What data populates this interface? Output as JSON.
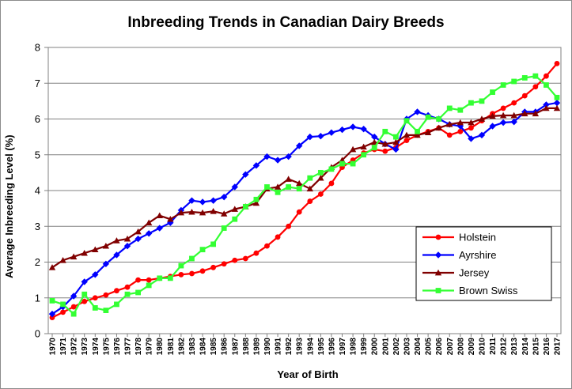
{
  "chart_data": {
    "type": "line",
    "title": "Inbreeding Trends in Canadian Dairy Breeds",
    "xlabel": "Year of Birth",
    "ylabel": "Average Inbreeding Level (%)",
    "ylim": [
      0,
      8
    ],
    "yticks": [
      "0",
      "1",
      "2",
      "3",
      "4",
      "5",
      "6",
      "7",
      "8"
    ],
    "grid": true,
    "legend_position": "bottom-right",
    "categories": [
      "1970",
      "1971",
      "1972",
      "1973",
      "1974",
      "1975",
      "1976",
      "1977",
      "1978",
      "1979",
      "1980",
      "1981",
      "1982",
      "1983",
      "1984",
      "1985",
      "1986",
      "1987",
      "1988",
      "1989",
      "1990",
      "1991",
      "1992",
      "1993",
      "1994",
      "1995",
      "1996",
      "1997",
      "1998",
      "1999",
      "2000",
      "2001",
      "2002",
      "2003",
      "2004",
      "2005",
      "2006",
      "2007",
      "2008",
      "2009",
      "2010",
      "2011",
      "2012",
      "2013",
      "2014",
      "2015",
      "2016",
      "2017"
    ],
    "series": [
      {
        "name": "Holstein",
        "color": "#ff0000",
        "marker": "circle",
        "values": [
          0.45,
          0.6,
          0.75,
          0.9,
          1.0,
          1.08,
          1.2,
          1.3,
          1.5,
          1.5,
          1.55,
          1.6,
          1.65,
          1.68,
          1.75,
          1.85,
          1.95,
          2.05,
          2.1,
          2.25,
          2.45,
          2.7,
          3.0,
          3.4,
          3.7,
          3.9,
          4.2,
          4.65,
          4.85,
          5.05,
          5.15,
          5.1,
          5.2,
          5.4,
          5.55,
          5.65,
          5.75,
          5.55,
          5.65,
          5.75,
          5.95,
          6.15,
          6.3,
          6.45,
          6.65,
          6.9,
          7.2,
          7.55
        ]
      },
      {
        "name": "Ayrshire",
        "color": "#0000ff",
        "marker": "diamond",
        "values": [
          0.55,
          0.75,
          1.05,
          1.45,
          1.65,
          1.95,
          2.2,
          2.45,
          2.65,
          2.8,
          2.95,
          3.1,
          3.45,
          3.72,
          3.68,
          3.72,
          3.82,
          4.1,
          4.45,
          4.7,
          4.95,
          4.85,
          4.95,
          5.25,
          5.5,
          5.52,
          5.62,
          5.7,
          5.78,
          5.72,
          5.5,
          5.3,
          5.15,
          6.0,
          6.2,
          6.1,
          6.0,
          5.85,
          5.8,
          5.45,
          5.55,
          5.8,
          5.9,
          5.92,
          6.2,
          6.2,
          6.4,
          6.45
        ]
      },
      {
        "name": "Jersey",
        "color": "#800000",
        "marker": "triangle",
        "values": [
          1.85,
          2.05,
          2.15,
          2.25,
          2.35,
          2.45,
          2.6,
          2.65,
          2.85,
          3.1,
          3.3,
          3.2,
          3.38,
          3.4,
          3.38,
          3.42,
          3.35,
          3.48,
          3.55,
          3.65,
          4.05,
          4.1,
          4.32,
          4.2,
          4.05,
          4.35,
          4.65,
          4.85,
          5.15,
          5.22,
          5.35,
          5.3,
          5.35,
          5.55,
          5.55,
          5.62,
          5.75,
          5.85,
          5.9,
          5.9,
          6.0,
          6.08,
          6.1,
          6.1,
          6.15,
          6.15,
          6.3,
          6.3
        ]
      },
      {
        "name": "Brown Swiss",
        "color": "#33ff33",
        "marker": "square",
        "values": [
          0.92,
          0.82,
          0.55,
          1.1,
          0.72,
          0.65,
          0.82,
          1.1,
          1.15,
          1.35,
          1.55,
          1.55,
          1.9,
          2.1,
          2.35,
          2.5,
          2.95,
          3.2,
          3.55,
          3.75,
          4.1,
          3.95,
          4.1,
          4.05,
          4.35,
          4.5,
          4.6,
          4.75,
          4.75,
          5.0,
          5.2,
          5.65,
          5.5,
          5.95,
          5.65,
          6.05,
          6.0,
          6.3,
          6.25,
          6.45,
          6.5,
          6.75,
          6.95,
          7.05,
          7.15,
          7.2,
          6.95,
          6.6
        ]
      }
    ]
  }
}
